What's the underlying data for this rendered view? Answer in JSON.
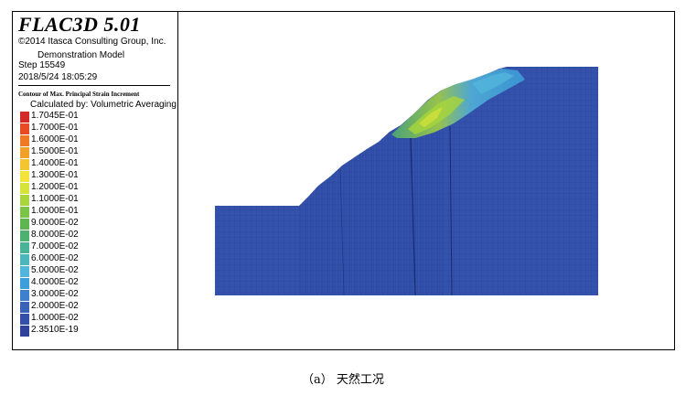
{
  "header": {
    "software": "FLAC3D 5.01",
    "copyright": "©2014 Itasca Consulting Group, Inc.",
    "model": "Demonstration Model",
    "step": "Step 15549",
    "datetime": "2018/5/24 18:05:29"
  },
  "contour": {
    "title": "Contour of Max. Principal Strain Increment",
    "calculated_by": "Calculated by: Volumetric Averaging",
    "entries": [
      {
        "label": "1.7045E-01",
        "color": "#d42b27"
      },
      {
        "label": "1.7000E-01",
        "color": "#e84b24"
      },
      {
        "label": "1.6000E-01",
        "color": "#ef7a23"
      },
      {
        "label": "1.5000E-01",
        "color": "#f2a128"
      },
      {
        "label": "1.4000E-01",
        "color": "#f5c531"
      },
      {
        "label": "1.3000E-01",
        "color": "#f3e33a"
      },
      {
        "label": "1.2000E-01",
        "color": "#d6e33a"
      },
      {
        "label": "1.1000E-01",
        "color": "#a8d63c"
      },
      {
        "label": "1.0000E-01",
        "color": "#7cc447"
      },
      {
        "label": "9.0000E-02",
        "color": "#5db64f"
      },
      {
        "label": "8.0000E-02",
        "color": "#4fb170"
      },
      {
        "label": "7.0000E-02",
        "color": "#49b397"
      },
      {
        "label": "6.0000E-02",
        "color": "#4ab6bd"
      },
      {
        "label": "5.0000E-02",
        "color": "#52b5db"
      },
      {
        "label": "4.0000E-02",
        "color": "#3d9fd9"
      },
      {
        "label": "3.0000E-02",
        "color": "#3f7fcc"
      },
      {
        "label": "2.0000E-02",
        "color": "#3a63b8"
      },
      {
        "label": "1.0000E-02",
        "color": "#3350a8"
      },
      {
        "label": "2.3510E-19",
        "color": "#2e419b"
      }
    ]
  },
  "caption": "（a） 天然工况"
}
